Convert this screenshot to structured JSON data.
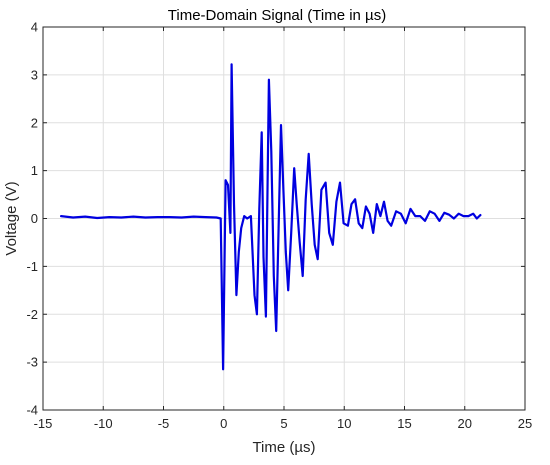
{
  "chart_data": {
    "type": "line",
    "title": "Time-Domain Signal (Time in µs)",
    "xlabel": "Time (µs)",
    "ylabel": "Voltage (V)",
    "xlim": [
      -15,
      25
    ],
    "ylim": [
      -4,
      4
    ],
    "xticks": [
      -15,
      -10,
      -5,
      0,
      5,
      10,
      15,
      20,
      25
    ],
    "yticks": [
      -4,
      -3,
      -2,
      -1,
      0,
      1,
      2,
      3,
      4
    ],
    "grid": true,
    "series": [
      {
        "color": "#0000e0",
        "x": [
          -13.5,
          -12.5,
          -11.5,
          -10.5,
          -9.5,
          -8.5,
          -7.5,
          -6.5,
          -5.5,
          -4.5,
          -3.5,
          -2.5,
          -1.5,
          -0.6,
          -0.25,
          -0.05,
          0.15,
          0.35,
          0.55,
          0.65,
          0.85,
          1.05,
          1.25,
          1.45,
          1.7,
          1.95,
          2.25,
          2.55,
          2.75,
          2.95,
          3.15,
          3.3,
          3.5,
          3.75,
          3.95,
          4.15,
          4.35,
          4.55,
          4.75,
          4.95,
          5.15,
          5.35,
          5.6,
          5.85,
          6.05,
          6.3,
          6.55,
          6.8,
          7.05,
          7.3,
          7.55,
          7.8,
          8.1,
          8.45,
          8.75,
          9.05,
          9.35,
          9.65,
          9.95,
          10.3,
          10.6,
          10.9,
          11.2,
          11.5,
          11.8,
          12.1,
          12.4,
          12.7,
          13.0,
          13.3,
          13.6,
          13.9,
          14.3,
          14.7,
          15.1,
          15.5,
          15.9,
          16.3,
          16.7,
          17.1,
          17.5,
          17.9,
          18.3,
          18.7,
          19.1,
          19.5,
          19.9,
          20.3,
          20.7,
          21.0,
          21.3
        ],
        "y": [
          0.05,
          0.02,
          0.04,
          0.01,
          0.03,
          0.02,
          0.04,
          0.02,
          0.03,
          0.03,
          0.02,
          0.04,
          0.03,
          0.02,
          0.0,
          -3.15,
          0.8,
          0.7,
          -0.3,
          3.22,
          0.3,
          -1.6,
          -0.7,
          -0.2,
          0.05,
          0.0,
          0.05,
          -1.6,
          -2.0,
          0.2,
          1.8,
          -0.8,
          -2.05,
          2.9,
          1.4,
          -1.2,
          -2.35,
          -0.2,
          1.95,
          0.6,
          -0.7,
          -1.5,
          -0.3,
          1.05,
          0.3,
          -0.5,
          -1.2,
          0.4,
          1.35,
          0.3,
          -0.55,
          -0.85,
          0.6,
          0.75,
          -0.3,
          -0.55,
          0.35,
          0.75,
          -0.1,
          -0.15,
          0.3,
          0.4,
          -0.1,
          -0.2,
          0.25,
          0.1,
          -0.3,
          0.3,
          0.05,
          0.35,
          -0.05,
          -0.15,
          0.15,
          0.1,
          -0.1,
          0.2,
          0.05,
          0.05,
          -0.05,
          0.15,
          0.1,
          -0.05,
          0.12,
          0.08,
          0.0,
          0.1,
          0.05,
          0.05,
          0.1,
          0.0,
          0.07
        ]
      }
    ]
  }
}
